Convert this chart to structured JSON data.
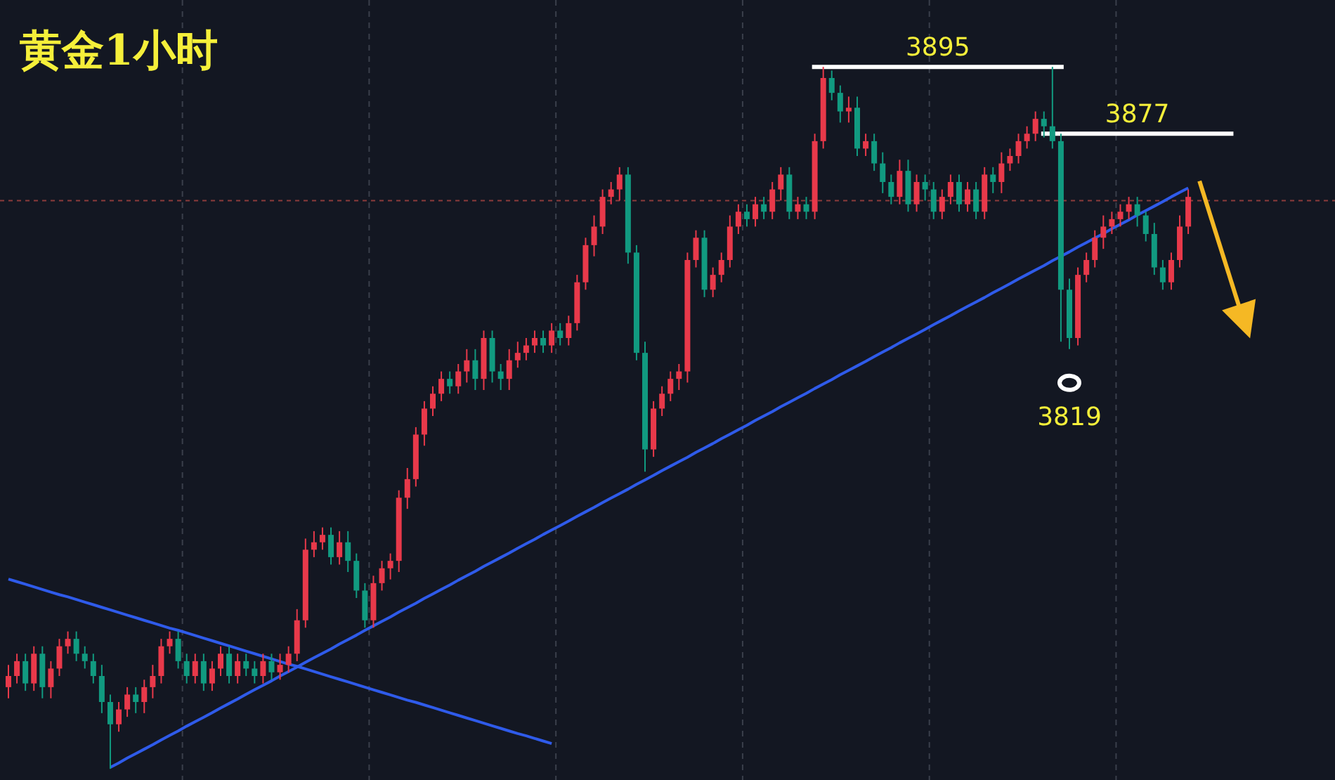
{
  "chart_data": {
    "type": "candlestick",
    "title": "黄金1小时",
    "grid": "x",
    "ylim": [
      3703,
      3913
    ],
    "categories": [
      null,
      null,
      null,
      null,
      null,
      null,
      null,
      null,
      null,
      null,
      null,
      null,
      null,
      null,
      null,
      null,
      null,
      null,
      null,
      null,
      null,
      null,
      null,
      null,
      null,
      null,
      null,
      null,
      null,
      null,
      null,
      null,
      null,
      null,
      null,
      null,
      null,
      null,
      null,
      null,
      null,
      null,
      null,
      null,
      null,
      null,
      null,
      null,
      null,
      null,
      null,
      null,
      null,
      null,
      null,
      null,
      null,
      null,
      null,
      null,
      null,
      null,
      null,
      null,
      null,
      null,
      null,
      null,
      null,
      null,
      null,
      null,
      null,
      null,
      null,
      null,
      null,
      null,
      null,
      null,
      null,
      null,
      null,
      null,
      null,
      null,
      null,
      null,
      null,
      null,
      null,
      null,
      null,
      null,
      null,
      null,
      null,
      null,
      null,
      null,
      null,
      null,
      null,
      null,
      null,
      null,
      null,
      null,
      null,
      null,
      null,
      null,
      null,
      null,
      null,
      null,
      null,
      null,
      null,
      null,
      null,
      null,
      null,
      null,
      null,
      null,
      null,
      null,
      null,
      null,
      null,
      null,
      null,
      null,
      null,
      null,
      null,
      null,
      null,
      null
    ],
    "ohlc": [
      [
        3728,
        3734,
        3725,
        3731
      ],
      [
        3731,
        3737,
        3729,
        3735
      ],
      [
        3735,
        3737,
        3727,
        3729
      ],
      [
        3729,
        3739,
        3727,
        3737
      ],
      [
        3737,
        3739,
        3725,
        3728
      ],
      [
        3728,
        3735,
        3725,
        3733
      ],
      [
        3733,
        3741,
        3731,
        3739
      ],
      [
        3739,
        3743,
        3737,
        3741
      ],
      [
        3741,
        3743,
        3735,
        3737
      ],
      [
        3737,
        3739,
        3733,
        3735
      ],
      [
        3735,
        3737,
        3729,
        3731
      ],
      [
        3731,
        3734,
        3721,
        3724
      ],
      [
        3724,
        3726,
        3706,
        3718
      ],
      [
        3718,
        3724,
        3716,
        3722
      ],
      [
        3722,
        3728,
        3720,
        3726
      ],
      [
        3726,
        3728,
        3721,
        3724
      ],
      [
        3724,
        3730,
        3721,
        3728
      ],
      [
        3728,
        3734,
        3725,
        3731
      ],
      [
        3731,
        3741,
        3729,
        3739
      ],
      [
        3739,
        3743,
        3737,
        3741
      ],
      [
        3741,
        3743,
        3733,
        3735
      ],
      [
        3735,
        3737,
        3729,
        3731
      ],
      [
        3731,
        3737,
        3729,
        3735
      ],
      [
        3735,
        3737,
        3727,
        3729
      ],
      [
        3729,
        3735,
        3727,
        3733
      ],
      [
        3733,
        3739,
        3731,
        3737
      ],
      [
        3737,
        3739,
        3729,
        3731
      ],
      [
        3731,
        3737,
        3729,
        3735
      ],
      [
        3735,
        3737,
        3731,
        3733
      ],
      [
        3733,
        3735,
        3729,
        3731
      ],
      [
        3731,
        3737,
        3729,
        3735
      ],
      [
        3735,
        3737,
        3730,
        3732
      ],
      [
        3732,
        3737,
        3730,
        3734
      ],
      [
        3734,
        3739,
        3732,
        3737
      ],
      [
        3737,
        3749,
        3735,
        3746
      ],
      [
        3746,
        3768,
        3744,
        3765
      ],
      [
        3765,
        3770,
        3763,
        3767
      ],
      [
        3767,
        3771,
        3765,
        3769
      ],
      [
        3769,
        3771,
        3761,
        3763
      ],
      [
        3763,
        3770,
        3761,
        3767
      ],
      [
        3767,
        3770,
        3759,
        3762
      ],
      [
        3762,
        3764,
        3752,
        3754
      ],
      [
        3754,
        3756,
        3744,
        3746
      ],
      [
        3746,
        3758,
        3744,
        3756
      ],
      [
        3756,
        3762,
        3754,
        3760
      ],
      [
        3760,
        3764,
        3757,
        3762
      ],
      [
        3762,
        3781,
        3759,
        3779
      ],
      [
        3779,
        3787,
        3776,
        3784
      ],
      [
        3784,
        3798,
        3782,
        3796
      ],
      [
        3796,
        3805,
        3793,
        3803
      ],
      [
        3803,
        3809,
        3801,
        3807
      ],
      [
        3807,
        3813,
        3805,
        3811
      ],
      [
        3811,
        3813,
        3807,
        3809
      ],
      [
        3809,
        3815,
        3807,
        3813
      ],
      [
        3813,
        3819,
        3810,
        3816
      ],
      [
        3816,
        3819,
        3808,
        3811
      ],
      [
        3811,
        3824,
        3808,
        3822
      ],
      [
        3822,
        3824,
        3810,
        3813
      ],
      [
        3813,
        3815,
        3808,
        3811
      ],
      [
        3811,
        3819,
        3808,
        3816
      ],
      [
        3816,
        3821,
        3814,
        3818
      ],
      [
        3818,
        3822,
        3816,
        3820
      ],
      [
        3820,
        3824,
        3818,
        3822
      ],
      [
        3822,
        3824,
        3818,
        3820
      ],
      [
        3820,
        3826,
        3818,
        3824
      ],
      [
        3824,
        3826,
        3820,
        3822
      ],
      [
        3822,
        3828,
        3820,
        3826
      ],
      [
        3826,
        3839,
        3824,
        3837
      ],
      [
        3837,
        3849,
        3835,
        3847
      ],
      [
        3847,
        3855,
        3844,
        3852
      ],
      [
        3852,
        3862,
        3850,
        3860
      ],
      [
        3860,
        3864,
        3858,
        3862
      ],
      [
        3862,
        3868,
        3859,
        3866
      ],
      [
        3866,
        3868,
        3842,
        3845
      ],
      [
        3845,
        3847,
        3816,
        3818
      ],
      [
        3818,
        3821,
        3786,
        3792
      ],
      [
        3792,
        3805,
        3790,
        3803
      ],
      [
        3803,
        3809,
        3801,
        3807
      ],
      [
        3807,
        3813,
        3805,
        3811
      ],
      [
        3811,
        3815,
        3808,
        3813
      ],
      [
        3813,
        3845,
        3810,
        3843
      ],
      [
        3843,
        3851,
        3841,
        3849
      ],
      [
        3849,
        3851,
        3833,
        3835
      ],
      [
        3835,
        3841,
        3833,
        3839
      ],
      [
        3839,
        3845,
        3837,
        3843
      ],
      [
        3843,
        3855,
        3841,
        3852
      ],
      [
        3852,
        3858,
        3850,
        3856
      ],
      [
        3856,
        3858,
        3852,
        3854
      ],
      [
        3854,
        3860,
        3852,
        3858
      ],
      [
        3858,
        3860,
        3854,
        3856
      ],
      [
        3856,
        3864,
        3854,
        3862
      ],
      [
        3862,
        3868,
        3859,
        3866
      ],
      [
        3866,
        3868,
        3854,
        3856
      ],
      [
        3856,
        3860,
        3854,
        3858
      ],
      [
        3858,
        3860,
        3854,
        3856
      ],
      [
        3856,
        3877,
        3854,
        3875
      ],
      [
        3875,
        3895,
        3873,
        3892
      ],
      [
        3892,
        3894,
        3886,
        3888
      ],
      [
        3888,
        3890,
        3880,
        3883
      ],
      [
        3883,
        3887,
        3880,
        3884
      ],
      [
        3884,
        3887,
        3871,
        3873
      ],
      [
        3873,
        3877,
        3871,
        3875
      ],
      [
        3875,
        3877,
        3867,
        3869
      ],
      [
        3869,
        3872,
        3861,
        3864
      ],
      [
        3864,
        3866,
        3858,
        3860
      ],
      [
        3860,
        3870,
        3858,
        3867
      ],
      [
        3867,
        3870,
        3856,
        3858
      ],
      [
        3858,
        3866,
        3856,
        3864
      ],
      [
        3864,
        3866,
        3859,
        3862
      ],
      [
        3862,
        3864,
        3854,
        3856
      ],
      [
        3856,
        3862,
        3854,
        3860
      ],
      [
        3860,
        3866,
        3858,
        3864
      ],
      [
        3864,
        3866,
        3856,
        3858
      ],
      [
        3858,
        3864,
        3856,
        3862
      ],
      [
        3862,
        3864,
        3854,
        3856
      ],
      [
        3856,
        3868,
        3854,
        3866
      ],
      [
        3866,
        3868,
        3861,
        3864
      ],
      [
        3864,
        3872,
        3861,
        3869
      ],
      [
        3869,
        3873,
        3867,
        3871
      ],
      [
        3871,
        3877,
        3869,
        3875
      ],
      [
        3875,
        3879,
        3873,
        3877
      ],
      [
        3877,
        3883,
        3875,
        3881
      ],
      [
        3881,
        3883,
        3876,
        3879
      ],
      [
        3879,
        3895,
        3873,
        3875
      ],
      [
        3875,
        3877,
        3821,
        3835
      ],
      [
        3835,
        3838,
        3819,
        3822
      ],
      [
        3822,
        3841,
        3820,
        3839
      ],
      [
        3839,
        3845,
        3837,
        3843
      ],
      [
        3843,
        3851,
        3841,
        3849
      ],
      [
        3849,
        3855,
        3846,
        3852
      ],
      [
        3852,
        3856,
        3850,
        3854
      ],
      [
        3854,
        3858,
        3852,
        3856
      ],
      [
        3856,
        3860,
        3854,
        3858
      ],
      [
        3858,
        3860,
        3852,
        3855
      ],
      [
        3855,
        3856,
        3848,
        3850
      ],
      [
        3850,
        3853,
        3839,
        3841
      ],
      [
        3841,
        3843,
        3835,
        3837
      ],
      [
        3837,
        3845,
        3835,
        3843
      ],
      [
        3843,
        3855,
        3841,
        3852
      ],
      [
        3852,
        3862,
        3850,
        3860
      ]
    ],
    "series": [
      {
        "type": "line",
        "color": "#2f5bea",
        "values": [
          null,
          null,
          null,
          null,
          null,
          null,
          null,
          null,
          null,
          null,
          null,
          null,
          3706.4,
          3707.6,
          3708.9,
          3710.1,
          3711.3,
          3712.5,
          3713.8,
          3715.0,
          3716.2,
          3717.5,
          3718.7,
          3719.9,
          3721.1,
          3722.4,
          3723.6,
          3724.8,
          3726.1,
          3727.3,
          3728.5,
          3729.7,
          3731.0,
          3732.2,
          3733.4,
          3734.7,
          3735.9,
          3737.1,
          3738.3,
          3739.6,
          3740.8,
          3742.0,
          3743.3,
          3744.5,
          3745.7,
          3746.9,
          3748.2,
          3749.4,
          3750.6,
          3751.9,
          3753.1,
          3754.3,
          3755.5,
          3756.8,
          3758.0,
          3759.2,
          3760.5,
          3761.7,
          3762.9,
          3764.1,
          3765.4,
          3766.6,
          3767.8,
          3769.1,
          3770.3,
          3771.5,
          3772.7,
          3774.0,
          3775.2,
          3776.4,
          3777.7,
          3778.9,
          3780.1,
          3781.3,
          3782.6,
          3783.8,
          3785.0,
          3786.3,
          3787.5,
          3788.7,
          3789.9,
          3791.2,
          3792.4,
          3793.6,
          3794.9,
          3796.1,
          3797.3,
          3798.5,
          3799.8,
          3801.0,
          3802.2,
          3803.5,
          3804.7,
          3805.9,
          3807.1,
          3808.4,
          3809.6,
          3810.8,
          3812.1,
          3813.3,
          3814.5,
          3815.7,
          3817.0,
          3818.2,
          3819.4,
          3820.7,
          3821.9,
          3823.1,
          3824.3,
          3825.6,
          3826.8,
          3828.0,
          3829.3,
          3830.5,
          3831.7,
          3832.9,
          3834.2,
          3835.4,
          3836.6,
          3837.9,
          3839.1,
          3840.3,
          3841.5,
          3842.8,
          3844.0,
          3845.2,
          3846.5,
          3847.7,
          3848.9,
          3850.1,
          3851.4,
          3852.6,
          3853.8,
          3855.1,
          3856.3,
          3857.5,
          3858.7,
          3860.0,
          3861.2,
          3862.4
        ]
      },
      {
        "type": "line",
        "color": "#2f5bea",
        "values": [
          3757.1,
          3756.4,
          3755.7,
          3755.0,
          3754.3,
          3753.6,
          3752.9,
          3752.3,
          3751.6,
          3750.9,
          3750.2,
          3749.5,
          3748.8,
          3748.1,
          3747.4,
          3746.7,
          3746.0,
          3745.3,
          3744.6,
          3743.9,
          3743.3,
          3742.6,
          3741.9,
          3741.2,
          3740.5,
          3739.8,
          3739.1,
          3738.4,
          3737.7,
          3737.0,
          3736.3,
          3735.6,
          3734.9,
          3734.2,
          3733.6,
          3732.9,
          3732.2,
          3731.5,
          3730.8,
          3730.1,
          3729.4,
          3728.7,
          3728.0,
          3727.3,
          3726.6,
          3725.9,
          3725.2,
          3724.5,
          3723.9,
          3723.2,
          3722.5,
          3721.8,
          3721.1,
          3720.4,
          3719.7,
          3719.0,
          3718.3,
          3717.6,
          3716.9,
          3716.2,
          3715.5,
          3714.9,
          3714.2,
          3713.5,
          3712.8,
          null,
          null,
          null,
          null,
          null,
          null,
          null,
          null,
          null,
          null,
          null,
          null,
          null,
          null,
          null,
          null,
          null,
          null,
          null,
          null,
          null,
          null,
          null,
          null,
          null,
          null,
          null,
          null,
          null,
          null,
          null,
          null,
          null,
          null,
          null,
          null,
          null,
          null,
          null,
          null,
          null,
          null,
          null,
          null,
          null,
          null,
          null,
          null,
          null,
          null,
          null,
          null,
          null,
          null,
          null,
          null,
          null,
          null,
          null,
          null,
          null,
          null,
          null,
          null,
          null,
          null,
          null,
          null,
          null,
          null,
          null,
          null,
          null,
          null,
          null
        ]
      }
    ],
    "ref_lines": [
      {
        "axis": "y",
        "value": 3895,
        "label": "3895",
        "color": "#ffffff"
      },
      {
        "axis": "y",
        "value": 3877,
        "label": "3877",
        "color": "#ffffff"
      },
      {
        "axis": "y",
        "value": 3859,
        "color": "#8c3b3b",
        "line_style": "dashed"
      }
    ],
    "annotations": [
      {
        "text": "3819",
        "y": 3819
      }
    ]
  }
}
